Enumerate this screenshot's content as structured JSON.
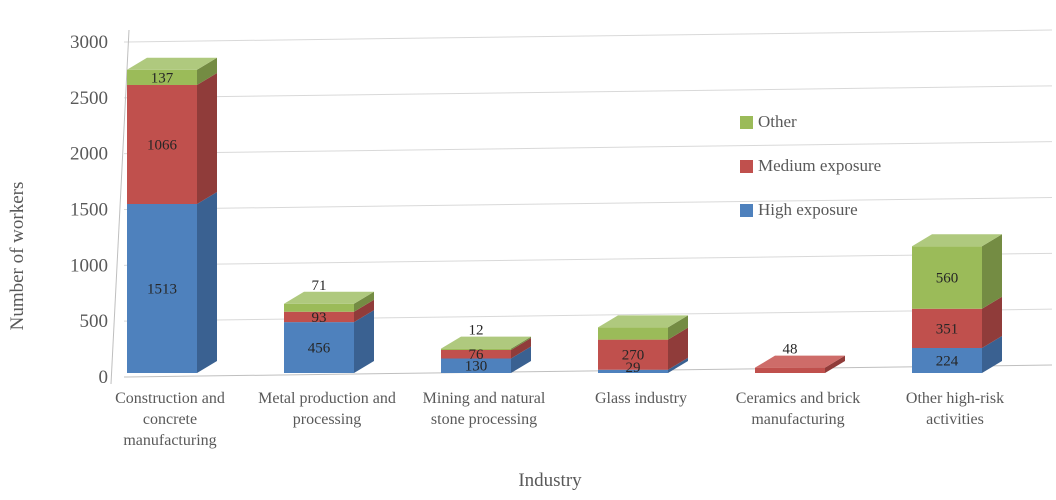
{
  "chart_data": {
    "type": "bar",
    "subtype": "3d-stacked-column",
    "title": "",
    "xlabel": "Industry",
    "ylabel": "Number of workers",
    "ylim": [
      0,
      3000
    ],
    "ytick_interval": 500,
    "yticks": [
      0,
      500,
      1000,
      1500,
      2000,
      2500,
      3000
    ],
    "grid": true,
    "legend_position": "upper-right",
    "categories": [
      "Construction and concrete manufacturing",
      "Metal production and processing",
      "Mining and natural stone processing",
      "Glass industry",
      "Ceramics and brick manufacturing",
      "Other high-risk activities"
    ],
    "series": [
      {
        "name": "High exposure",
        "color": "#4E81BD",
        "top_color": "#729ACA",
        "side_color": "#3A6191",
        "values": [
          1513,
          456,
          130,
          29,
          0,
          224
        ],
        "data_labels": [
          "1513",
          "456",
          "130",
          "29",
          null,
          "224"
        ]
      },
      {
        "name": "Medium exposure",
        "color": "#C0504D",
        "top_color": "#CE6C69",
        "side_color": "#903C3A",
        "values": [
          1066,
          93,
          76,
          270,
          48,
          351
        ],
        "data_labels": [
          "1066",
          "93",
          "76",
          "270",
          "48",
          "351"
        ]
      },
      {
        "name": "Other",
        "color": "#9BBB59",
        "top_color": "#AFC97E",
        "side_color": "#748C43",
        "values": [
          137,
          71,
          12,
          110,
          0,
          560
        ],
        "data_labels": [
          "137",
          "71",
          "12",
          null,
          null,
          "560"
        ]
      }
    ],
    "legend_items": [
      {
        "label": "Other",
        "color": "#9BBB59"
      },
      {
        "label": "Medium exposure",
        "color": "#C0504D"
      },
      {
        "label": "High exposure",
        "color": "#4E81BD"
      }
    ]
  }
}
